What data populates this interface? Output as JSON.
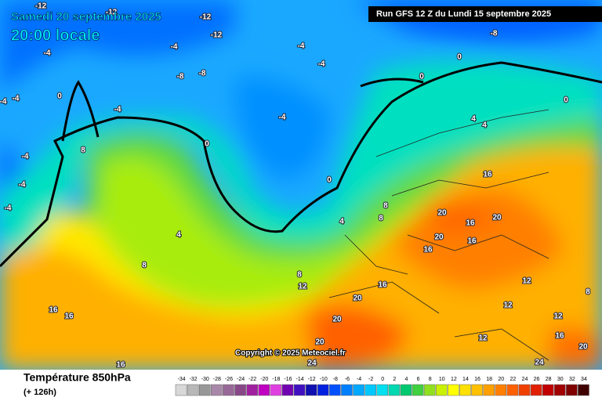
{
  "header": {
    "date": "Samedi 20 septembre 2025",
    "time": "20:00 locale",
    "run": "Run GFS 12 Z du Lundi 15 septembre 2025"
  },
  "copyright": "Copyright © 2025 Meteociel.fr",
  "footer": {
    "title": "Température 850hPa",
    "lead": "(+ 126h)"
  },
  "scale": {
    "ticks": [
      -34,
      -32,
      -30,
      -28,
      -26,
      -24,
      -22,
      -20,
      -18,
      -16,
      -14,
      -12,
      -10,
      -8,
      -6,
      -4,
      -2,
      0,
      2,
      4,
      6,
      8,
      10,
      12,
      14,
      16,
      18,
      20,
      22,
      24,
      26,
      28,
      30,
      32,
      34
    ],
    "colors": [
      "#d8d8d8",
      "#b8b8b8",
      "#989898",
      "#a888a8",
      "#986898",
      "#884888",
      "#a020a0",
      "#c000c0",
      "#e040e0",
      "#7000b0",
      "#4010c0",
      "#1010b0",
      "#0020e0",
      "#0050ff",
      "#0080ff",
      "#00a8ff",
      "#00c8ff",
      "#00e0f0",
      "#00d8b0",
      "#00c870",
      "#40d040",
      "#90e020",
      "#c8f000",
      "#ffff00",
      "#ffe000",
      "#ffc000",
      "#ffa000",
      "#ff8000",
      "#ff6000",
      "#f04000",
      "#e02000",
      "#c00000",
      "#a00000",
      "#800000",
      "#400000"
    ]
  },
  "contour_labels": [
    -12,
    -12,
    -12,
    -12,
    -8,
    -4,
    -4,
    -4,
    -4,
    -4,
    -4,
    -4,
    -4,
    -4,
    -4,
    -8,
    -8,
    0,
    0,
    0,
    0,
    0,
    0,
    -4,
    4,
    4,
    4,
    4,
    8,
    8,
    8,
    8,
    8,
    16,
    16,
    16,
    16,
    16,
    16,
    16,
    16,
    16,
    20,
    20,
    20,
    20,
    20,
    20,
    20,
    24,
    24,
    12,
    12,
    12,
    12,
    12,
    8
  ]
}
